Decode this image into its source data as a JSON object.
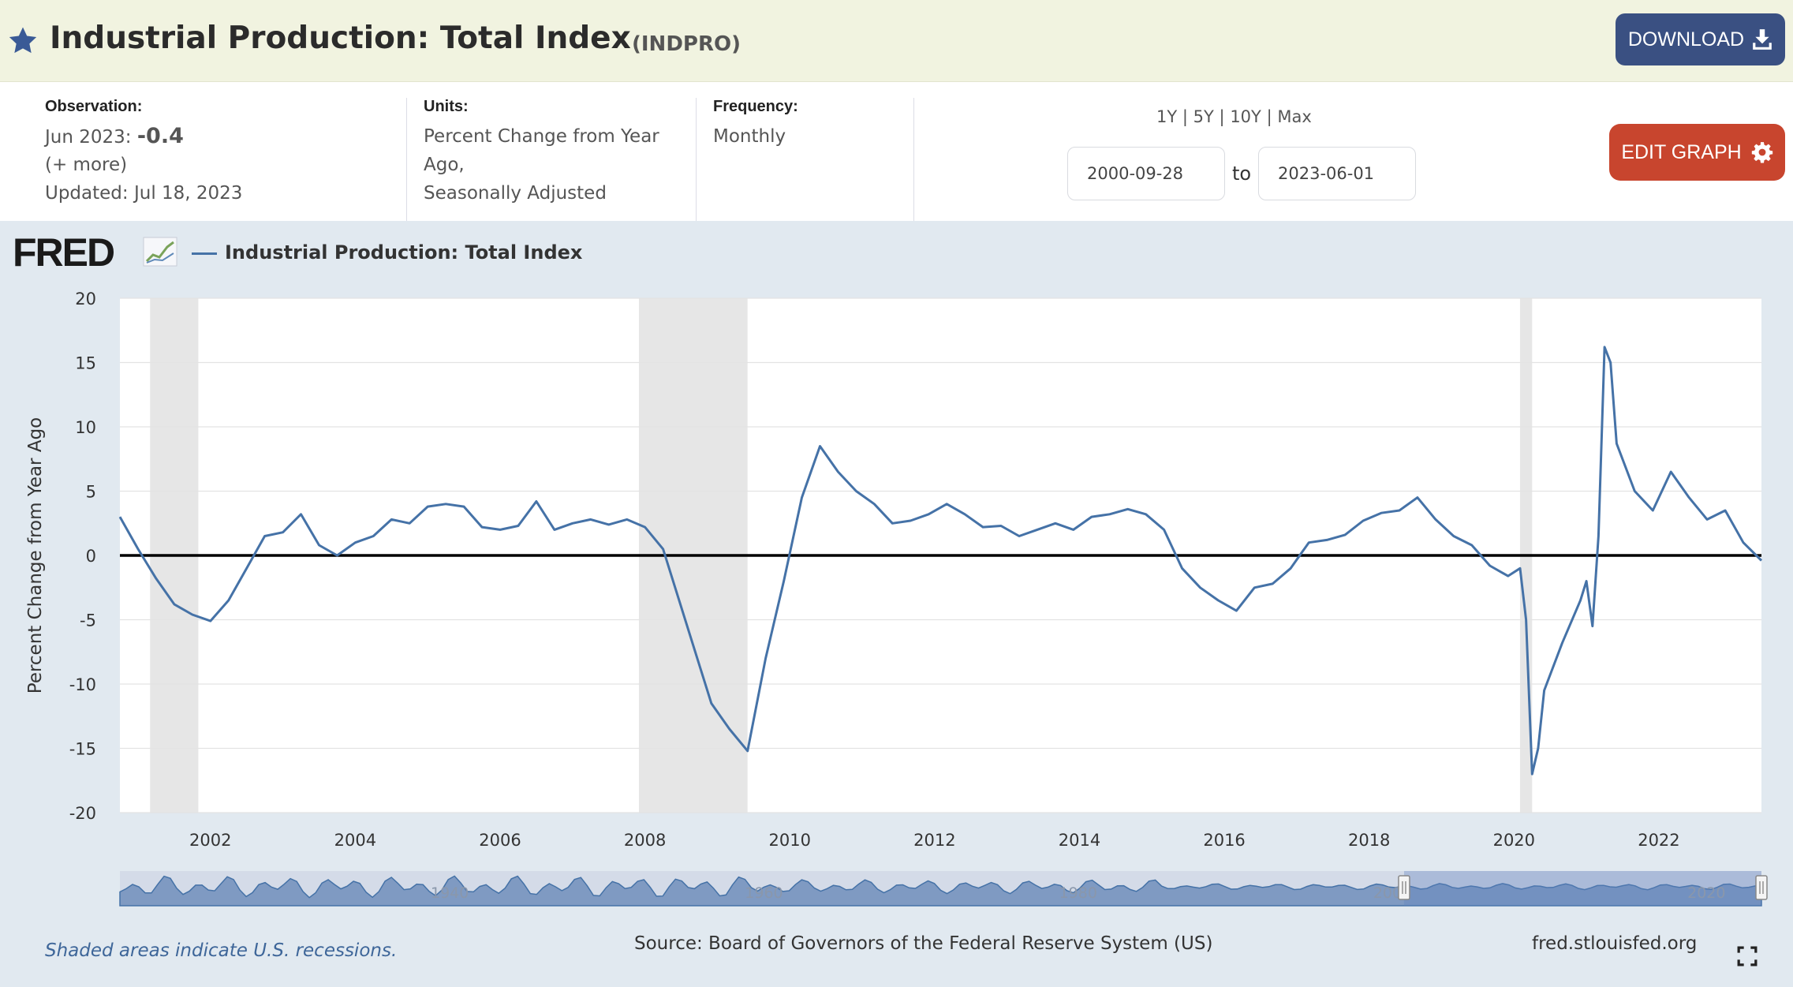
{
  "header": {
    "title": "Industrial Production: Total Index",
    "series_id": "(INDPRO)",
    "download_label": "DOWNLOAD",
    "star_icon": "star-icon",
    "download_icon": "download-icon"
  },
  "meta": {
    "observation_label": "Observation:",
    "observation_date": "Jun 2023:",
    "observation_value": "-0.4",
    "more_link": "(+ more)",
    "updated": "Updated: Jul 18, 2023",
    "units_label": "Units:",
    "units_line1": "Percent Change from Year",
    "units_line2": "Ago,",
    "units_line3": "Seasonally Adjusted",
    "frequency_label": "Frequency:",
    "frequency_value": "Monthly",
    "range_1y": "1Y",
    "range_5y": "5Y",
    "range_10y": "10Y",
    "range_max": "Max",
    "range_sep": "|",
    "start_date": "2000-09-28",
    "end_date": "2023-06-01",
    "to_label": "to",
    "edit_label": "EDIT GRAPH"
  },
  "colors": {
    "series": "#4572a7",
    "recession": "#e6e6e6",
    "header_bg": "#f1f3e0",
    "download_bg": "#3a5082",
    "edit_bg": "#c8452e"
  },
  "footer": {
    "note": "Shaded areas indicate U.S. recessions.",
    "source": "Source: Board of Governors of the Federal Reserve System (US)",
    "site": "fred.stlouisfed.org"
  },
  "chart_data": {
    "type": "line",
    "title": "",
    "legend_label": "Industrial Production: Total Index",
    "ylabel": "Percent Change from Year Ago",
    "xlabel": "",
    "ylim": [
      -20,
      20
    ],
    "yticks": [
      -20,
      -15,
      -10,
      -5,
      0,
      5,
      10,
      15,
      20
    ],
    "xlim": [
      "2000-10",
      "2023-06"
    ],
    "xticks": [
      "2002",
      "2004",
      "2006",
      "2008",
      "2010",
      "2012",
      "2014",
      "2016",
      "2018",
      "2020",
      "2022"
    ],
    "grid": true,
    "zero_line": true,
    "recessions": [
      [
        "2001-03",
        "2001-11"
      ],
      [
        "2007-12",
        "2009-06"
      ],
      [
        "2020-02",
        "2020-04"
      ]
    ],
    "navigator_ticks": [
      "1940",
      "1960",
      "1980",
      "2000",
      "2020"
    ],
    "series": [
      {
        "name": "Industrial Production: Total Index",
        "x": [
          "2000-10",
          "2001-01",
          "2001-04",
          "2001-07",
          "2001-10",
          "2002-01",
          "2002-04",
          "2002-07",
          "2002-10",
          "2003-01",
          "2003-04",
          "2003-07",
          "2003-10",
          "2004-01",
          "2004-04",
          "2004-07",
          "2004-10",
          "2005-01",
          "2005-04",
          "2005-07",
          "2005-10",
          "2006-01",
          "2006-04",
          "2006-07",
          "2006-10",
          "2007-01",
          "2007-04",
          "2007-07",
          "2007-10",
          "2008-01",
          "2008-04",
          "2008-06",
          "2008-09",
          "2008-12",
          "2009-03",
          "2009-06",
          "2009-09",
          "2009-12",
          "2010-03",
          "2010-06",
          "2010-09",
          "2010-12",
          "2011-03",
          "2011-06",
          "2011-09",
          "2011-12",
          "2012-03",
          "2012-06",
          "2012-09",
          "2012-12",
          "2013-03",
          "2013-06",
          "2013-09",
          "2013-12",
          "2014-03",
          "2014-06",
          "2014-09",
          "2014-12",
          "2015-03",
          "2015-06",
          "2015-09",
          "2015-12",
          "2016-03",
          "2016-06",
          "2016-09",
          "2016-12",
          "2017-03",
          "2017-06",
          "2017-09",
          "2017-12",
          "2018-03",
          "2018-06",
          "2018-09",
          "2018-12",
          "2019-03",
          "2019-06",
          "2019-09",
          "2019-12",
          "2020-02",
          "2020-03",
          "2020-04",
          "2020-05",
          "2020-06",
          "2020-09",
          "2020-12",
          "2021-01",
          "2021-02",
          "2021-03",
          "2021-04",
          "2021-05",
          "2021-06",
          "2021-09",
          "2021-12",
          "2022-03",
          "2022-06",
          "2022-09",
          "2022-12",
          "2023-03",
          "2023-06"
        ],
        "values": [
          3.0,
          0.5,
          -1.8,
          -3.8,
          -4.6,
          -5.1,
          -3.5,
          -1.0,
          1.5,
          1.8,
          3.2,
          0.8,
          0.0,
          1.0,
          1.5,
          2.8,
          2.5,
          3.8,
          4.0,
          3.8,
          2.2,
          2.0,
          2.3,
          4.2,
          2.0,
          2.5,
          2.8,
          2.4,
          2.8,
          2.2,
          0.5,
          -2.5,
          -7.0,
          -11.5,
          -13.5,
          -15.2,
          -8.0,
          -2.0,
          4.5,
          8.5,
          6.5,
          5.0,
          4.0,
          2.5,
          2.7,
          3.2,
          4.0,
          3.2,
          2.2,
          2.3,
          1.5,
          2.0,
          2.5,
          2.0,
          3.0,
          3.2,
          3.6,
          3.2,
          2.0,
          -1.0,
          -2.5,
          -3.5,
          -4.3,
          -2.5,
          -2.2,
          -1.0,
          1.0,
          1.2,
          1.6,
          2.7,
          3.3,
          3.5,
          4.5,
          2.8,
          1.5,
          0.8,
          -0.8,
          -1.6,
          -1.0,
          -5.0,
          -17.0,
          -15.0,
          -10.5,
          -6.8,
          -3.5,
          -2.0,
          -5.5,
          1.5,
          16.2,
          15.0,
          8.7,
          5.0,
          3.5,
          6.5,
          4.5,
          2.8,
          3.5,
          1.0,
          -0.4
        ]
      }
    ]
  }
}
